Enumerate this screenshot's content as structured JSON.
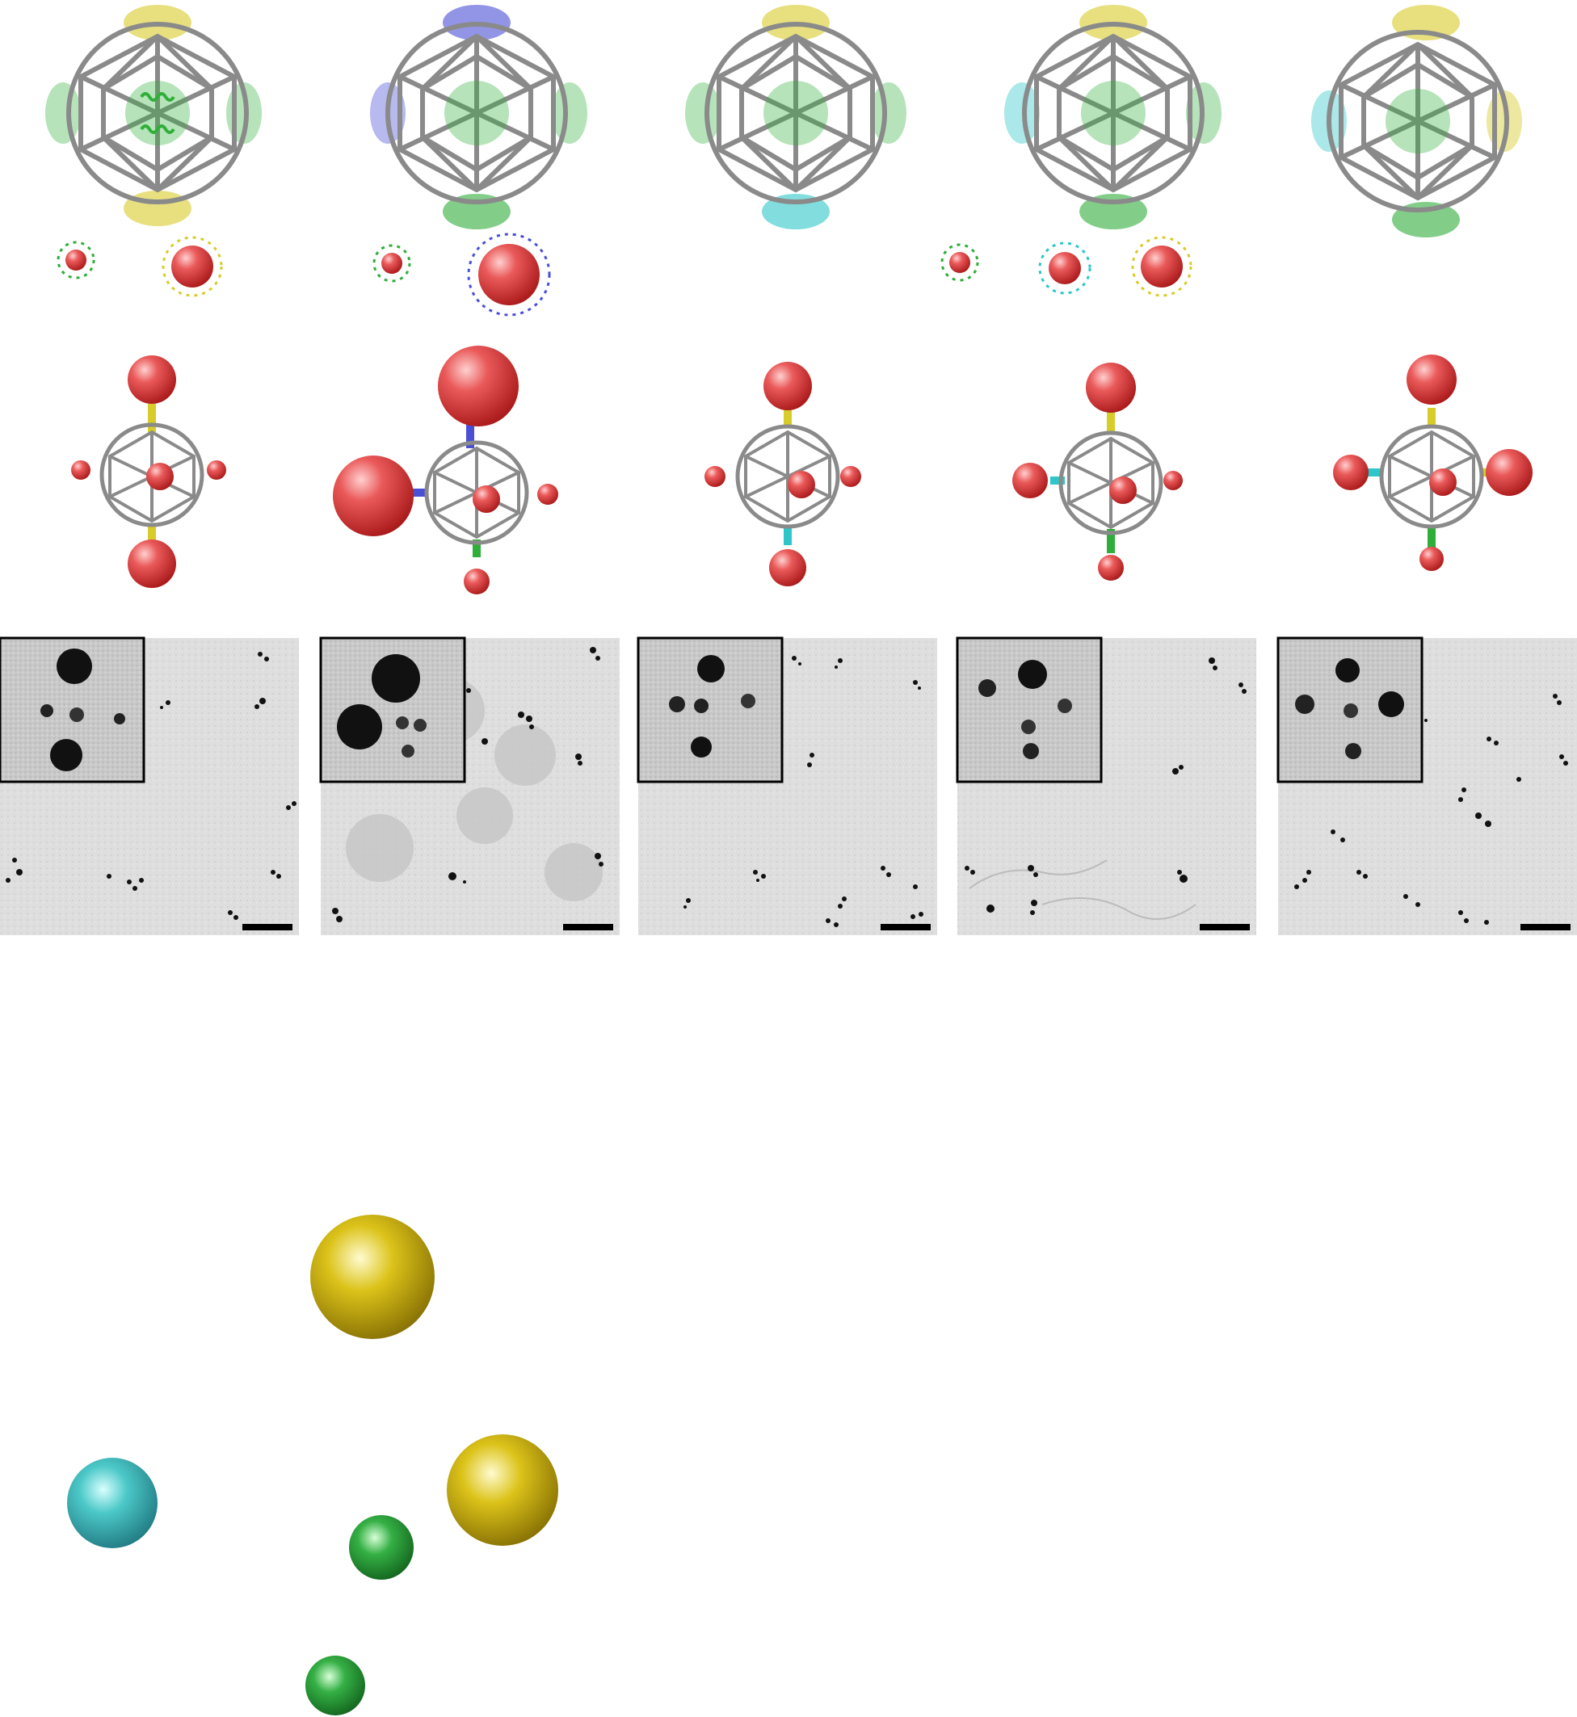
{
  "figure": {
    "panels": [
      {
        "id": "panel-1",
        "caps": {
          "top": "yellow",
          "bottom": "yellow",
          "left": "green",
          "right": "green",
          "center": "green"
        },
        "ligands": [
          "green",
          "yellow"
        ]
      },
      {
        "id": "panel-2",
        "caps": {
          "top": "blue",
          "bottom": "green",
          "left": "blue",
          "right": "green",
          "center": "green"
        },
        "ligands": [
          "green",
          "blue"
        ]
      },
      {
        "id": "panel-3",
        "caps": {
          "top": "yellow",
          "bottom": "cyan",
          "left": "green",
          "right": "green",
          "center": "green"
        },
        "ligands": []
      },
      {
        "id": "panel-4",
        "caps": {
          "top": "yellow",
          "bottom": "green",
          "left": "cyan",
          "right": "green",
          "center": "green"
        },
        "ligands": [
          "green",
          "cyan",
          "yellow"
        ]
      },
      {
        "id": "panel-5",
        "caps": {
          "top": "yellow",
          "bottom": "green",
          "left": "cyan",
          "right": "yellow",
          "center": "green"
        },
        "ligands": []
      }
    ],
    "colors": {
      "yellow": "#d8cc2a",
      "green": "#2fae3a",
      "blue": "#4a4fd6",
      "cyan": "#2ec6c8",
      "gold_sphere": "#d4b400",
      "particle_red": "#e03a3a",
      "cage_gray": "#8a8a8a"
    }
  }
}
